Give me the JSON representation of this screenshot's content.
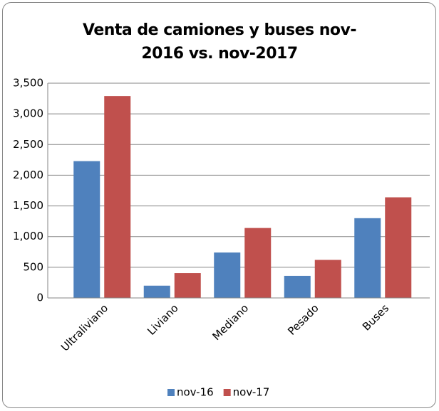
{
  "chart_data": {
    "type": "bar",
    "title": "Venta de camiones y buses nov-2016 vs. nov-2017",
    "categories": [
      "Ultraliviano",
      "Liviano",
      "Mediano",
      "Pesado",
      "Buses"
    ],
    "series": [
      {
        "name": "nov-16",
        "color": "#4f81bd",
        "values": [
          2230,
          200,
          740,
          360,
          1300
        ]
      },
      {
        "name": "nov-17",
        "color": "#c0504d",
        "values": [
          3290,
          405,
          1140,
          620,
          1640
        ]
      }
    ],
    "ylim": [
      0,
      3500
    ],
    "yticks": [
      0,
      500,
      {
        "value": 1000,
        "label": "1,000"
      },
      {
        "value": 1500,
        "label": "1,500"
      },
      {
        "value": 2000,
        "label": "2,000"
      },
      {
        "value": 2500,
        "label": "2,500"
      },
      {
        "value": 3000,
        "label": "3,000"
      },
      {
        "value": 3500,
        "label": "3,500"
      }
    ],
    "grid": true,
    "legend": "bottom"
  }
}
